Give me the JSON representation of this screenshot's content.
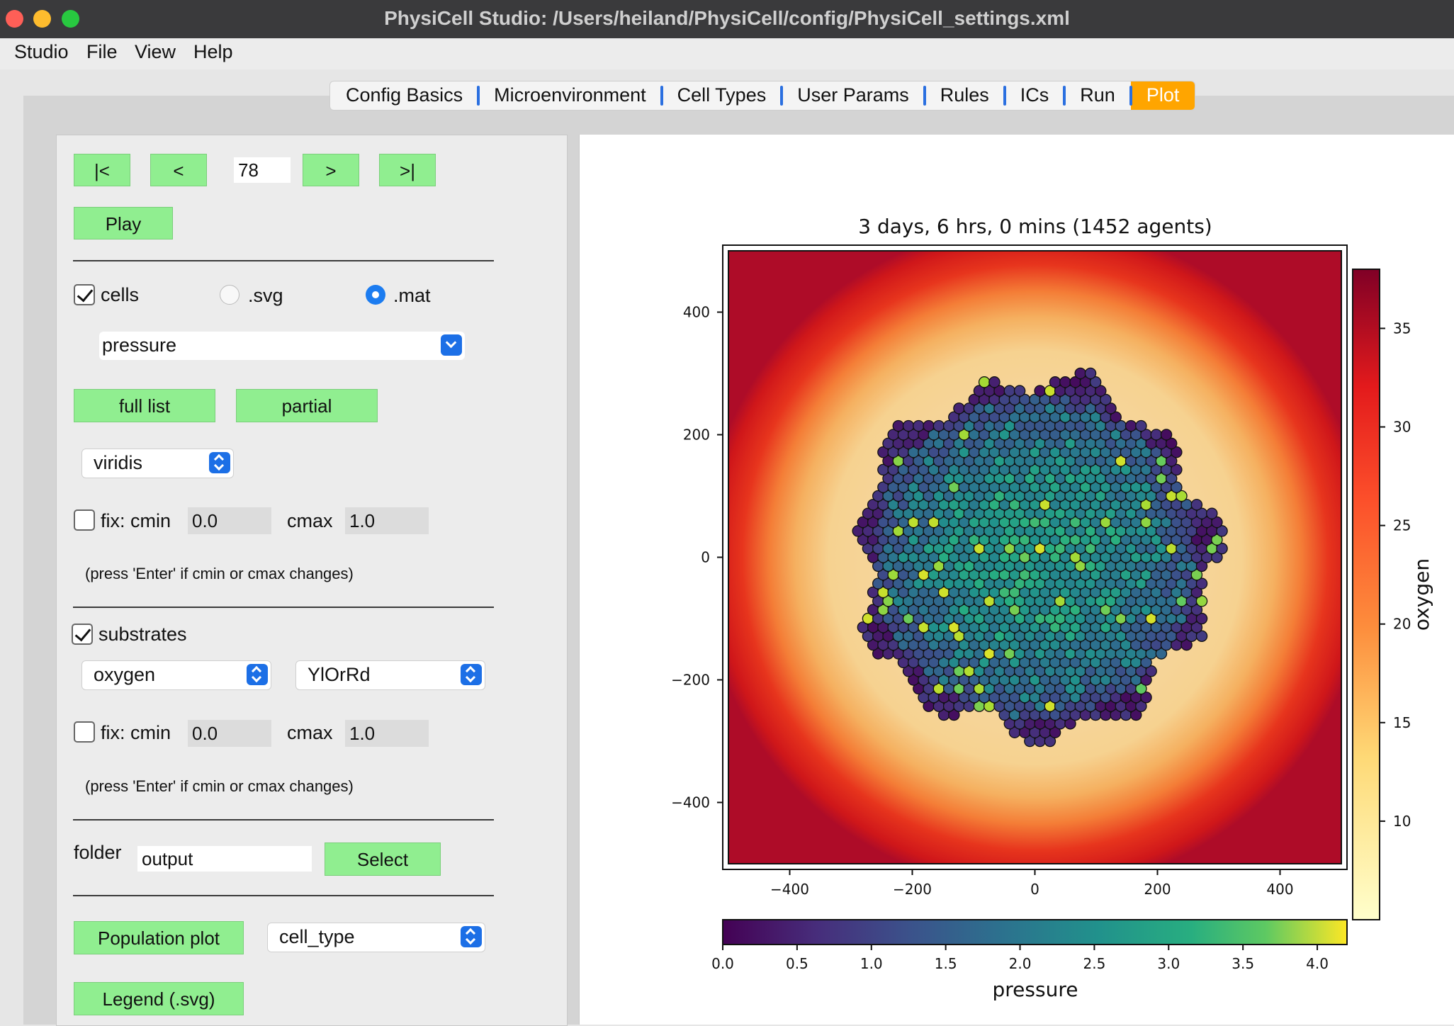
{
  "window": {
    "title": "PhysiCell Studio: /Users/heiland/PhysiCell/config/PhysiCell_settings.xml"
  },
  "menu": [
    "Studio",
    "File",
    "View",
    "Help"
  ],
  "tabs": [
    "Config Basics",
    "Microenvironment",
    "Cell Types",
    "User Params",
    "Rules",
    "ICs",
    "Run",
    "Plot"
  ],
  "active_tab": "Plot",
  "nav": {
    "first": "|<",
    "prev": "<",
    "frame": "78",
    "next": ">",
    "last": ">|",
    "play": "Play"
  },
  "cells": {
    "checkbox_label": "cells",
    "checked": true,
    "svg_label": ".svg",
    "mat_label": ".mat",
    "selected_format": ".mat",
    "scalar": "pressure",
    "full_list": "full list",
    "partial": "partial",
    "colormap": "viridis",
    "fix_label": "fix: cmin",
    "fix_checked": false,
    "cmin": "0.0",
    "cmax_label": "cmax",
    "cmax": "1.0",
    "hint": "(press 'Enter' if cmin or cmax changes)"
  },
  "substrates": {
    "checkbox_label": "substrates",
    "checked": true,
    "substrate": "oxygen",
    "colormap": "YlOrRd",
    "fix_label": "fix: cmin",
    "fix_checked": false,
    "cmin": "0.0",
    "cmax_label": "cmax",
    "cmax": "1.0",
    "hint": "(press 'Enter' if cmin or cmax changes)"
  },
  "folder": {
    "label": "folder",
    "value": "output",
    "select": "Select"
  },
  "population": {
    "button": "Population plot",
    "field": "cell_type"
  },
  "legend_button": "Legend (.svg)",
  "colors": {
    "accent_tab": "#ffa500",
    "green_button": "#90ee90",
    "blue_control": "#1c6fe6"
  },
  "chart_data": {
    "type": "heatmap",
    "title": "3 days, 6 hrs, 0 mins (1452 agents)",
    "xlim": [
      -500,
      500
    ],
    "ylim": [
      -500,
      500
    ],
    "xticks": [
      "−400",
      "−200",
      "0",
      "200",
      "400"
    ],
    "yticks": [
      "400",
      "200",
      "0",
      "−200",
      "−400"
    ],
    "substrate_colorbar": {
      "label": "oxygen",
      "colormap": "YlOrRd",
      "range": [
        5,
        38
      ],
      "ticks": [
        "10",
        "15",
        "20",
        "25",
        "30",
        "35"
      ]
    },
    "cell_colorbar": {
      "label": "pressure",
      "colormap": "viridis",
      "range": [
        0,
        4.2
      ],
      "ticks": [
        "0.0",
        "0.5",
        "1.0",
        "1.5",
        "2.0",
        "2.5",
        "3.0",
        "3.5",
        "4.0"
      ]
    },
    "agents": 1452,
    "colony_radius": 310
  }
}
